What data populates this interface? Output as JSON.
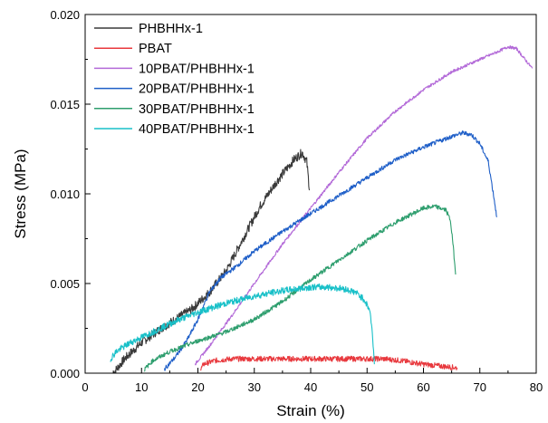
{
  "chart_data": {
    "type": "line",
    "title": "",
    "xlabel": "Strain (%)",
    "ylabel": "Stress (MPa)",
    "xlim": [
      0,
      80
    ],
    "ylim": [
      0,
      0.02
    ],
    "xticks": [
      0,
      10,
      20,
      30,
      40,
      50,
      60,
      70,
      80
    ],
    "xtick_labels": [
      "0",
      "10",
      "20",
      "30",
      "40",
      "50",
      "60",
      "70",
      "80"
    ],
    "yticks": [
      0,
      0.005,
      0.01,
      0.015,
      0.02
    ],
    "ytick_labels": [
      "0.000",
      "0.005",
      "0.010",
      "0.015",
      "0.020"
    ],
    "grid": false,
    "legend_position": "top-left",
    "series": [
      {
        "name": "PHBHHx-1",
        "color": "#3a3a3a",
        "noise": 0.00025,
        "points": [
          [
            5,
            0.0
          ],
          [
            7,
            0.0008
          ],
          [
            10,
            0.0017
          ],
          [
            13,
            0.0024
          ],
          [
            16,
            0.003
          ],
          [
            19,
            0.0036
          ],
          [
            22,
            0.0045
          ],
          [
            25,
            0.0057
          ],
          [
            28,
            0.0075
          ],
          [
            31,
            0.0093
          ],
          [
            34,
            0.0107
          ],
          [
            37,
            0.0119
          ],
          [
            38.5,
            0.0123
          ],
          [
            39.3,
            0.0118
          ],
          [
            39.8,
            0.0102
          ]
        ]
      },
      {
        "name": "PBAT",
        "color": "#e8383d",
        "noise": 0.00015,
        "points": [
          [
            20.5,
            0.0002
          ],
          [
            21,
            0.0005
          ],
          [
            23,
            0.0007
          ],
          [
            26,
            0.0008
          ],
          [
            30,
            0.0008
          ],
          [
            35,
            0.0008
          ],
          [
            40,
            0.0008
          ],
          [
            45,
            0.0008
          ],
          [
            50,
            0.0008
          ],
          [
            53,
            0.0008
          ],
          [
            56,
            0.0007
          ],
          [
            60,
            0.0005
          ],
          [
            63,
            0.0004
          ],
          [
            66,
            0.0003
          ]
        ]
      },
      {
        "name": "10PBAT/PHBHHx-1",
        "color": "#b36ad8",
        "noise": 8e-05,
        "points": [
          [
            19.5,
            0.0005
          ],
          [
            22,
            0.0015
          ],
          [
            26,
            0.0032
          ],
          [
            30,
            0.005
          ],
          [
            35,
            0.0072
          ],
          [
            40,
            0.0092
          ],
          [
            45,
            0.0112
          ],
          [
            50,
            0.0131
          ],
          [
            55,
            0.0146
          ],
          [
            60,
            0.0158
          ],
          [
            65,
            0.0168
          ],
          [
            70,
            0.0175
          ],
          [
            73,
            0.0179
          ],
          [
            75,
            0.0182
          ],
          [
            76.5,
            0.0181
          ],
          [
            77.5,
            0.0177
          ],
          [
            78.5,
            0.0173
          ],
          [
            79.3,
            0.017
          ]
        ]
      },
      {
        "name": "20PBAT/PHBHHx-1",
        "color": "#1f5fc8",
        "noise": 0.00012,
        "points": [
          [
            14,
            0.0002
          ],
          [
            16,
            0.0009
          ],
          [
            18,
            0.0018
          ],
          [
            20,
            0.003
          ],
          [
            22,
            0.0045
          ],
          [
            24,
            0.0053
          ],
          [
            27,
            0.006
          ],
          [
            30,
            0.0068
          ],
          [
            35,
            0.0079
          ],
          [
            40,
            0.0089
          ],
          [
            45,
            0.0099
          ],
          [
            50,
            0.0109
          ],
          [
            55,
            0.0119
          ],
          [
            60,
            0.0126
          ],
          [
            65,
            0.0132
          ],
          [
            67,
            0.0134
          ],
          [
            68.5,
            0.0133
          ],
          [
            70,
            0.0128
          ],
          [
            71.5,
            0.0118
          ],
          [
            72.5,
            0.0098
          ],
          [
            73,
            0.0087
          ]
        ]
      },
      {
        "name": "30PBAT/PHBHHx-1",
        "color": "#2e9e6e",
        "noise": 0.00012,
        "points": [
          [
            10.5,
            0.0002
          ],
          [
            12,
            0.0007
          ],
          [
            15,
            0.0012
          ],
          [
            20,
            0.0018
          ],
          [
            25,
            0.0023
          ],
          [
            30,
            0.003
          ],
          [
            35,
            0.004
          ],
          [
            40,
            0.0052
          ],
          [
            45,
            0.0063
          ],
          [
            50,
            0.0074
          ],
          [
            55,
            0.0084
          ],
          [
            60,
            0.0092
          ],
          [
            62,
            0.0093
          ],
          [
            64,
            0.0091
          ],
          [
            64.8,
            0.0085
          ],
          [
            65.3,
            0.007
          ],
          [
            65.7,
            0.0055
          ]
        ]
      },
      {
        "name": "40PBAT/PHBHHx-1",
        "color": "#18c0c8",
        "noise": 0.00018,
        "points": [
          [
            4.5,
            0.0008
          ],
          [
            5.5,
            0.0012
          ],
          [
            8,
            0.0017
          ],
          [
            12,
            0.0023
          ],
          [
            16,
            0.0029
          ],
          [
            20,
            0.0034
          ],
          [
            25,
            0.0039
          ],
          [
            30,
            0.0043
          ],
          [
            35,
            0.0046
          ],
          [
            40,
            0.0048
          ],
          [
            43,
            0.0048
          ],
          [
            46,
            0.0047
          ],
          [
            48,
            0.0045
          ],
          [
            49.5,
            0.0041
          ],
          [
            50.5,
            0.0035
          ],
          [
            51,
            0.002
          ],
          [
            51.3,
            0.0005
          ]
        ]
      }
    ]
  }
}
